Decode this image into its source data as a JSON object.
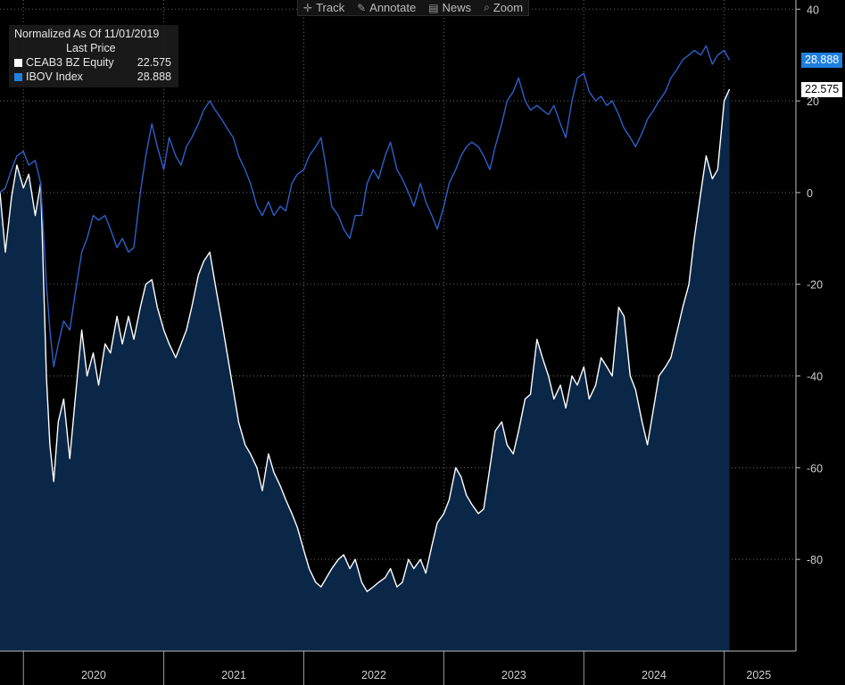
{
  "toolbar": {
    "track_label": "Track",
    "annotate_label": "Annotate",
    "news_label": "News",
    "zoom_label": "Zoom"
  },
  "legend": {
    "title": "Normalized As Of 11/01/2019",
    "subtitle": "Last Price",
    "items": [
      {
        "name": "CEAB3 BZ Equity",
        "value": "22.575",
        "color": "#ffffff"
      },
      {
        "name": "IBOV Index",
        "value": "28.888",
        "color": "#1f7fe0"
      }
    ]
  },
  "colors": {
    "background": "#000000",
    "ibov_line": "#2f5fc8",
    "ceab3_line": "#ffffff",
    "ceab3_fill": "#0b2747",
    "ibov_tag": "#1f7fe0",
    "grid": "#6b6b6b"
  },
  "chart_data": {
    "type": "line",
    "x_axis_type": "date",
    "x_range": [
      "2019-11-01",
      "2025-06-30"
    ],
    "ylim": [
      -100,
      42
    ],
    "y_ticks": [
      40,
      20,
      0,
      -20,
      -40,
      -60,
      -80
    ],
    "x_ticks": [
      "2020",
      "2021",
      "2022",
      "2023",
      "2024",
      "2025"
    ],
    "grid": true,
    "legend_position": "top-left",
    "series": [
      {
        "name": "CEAB3 BZ Equity",
        "last_value": 22.575,
        "area_fill": true,
        "points": [
          [
            "2019-11-01",
            0
          ],
          [
            "2019-11-15",
            -13
          ],
          [
            "2019-12-01",
            -1
          ],
          [
            "2019-12-15",
            6
          ],
          [
            "2020-01-01",
            1
          ],
          [
            "2020-01-15",
            4
          ],
          [
            "2020-02-01",
            -5
          ],
          [
            "2020-02-15",
            2
          ],
          [
            "2020-03-01",
            -40
          ],
          [
            "2020-03-10",
            -55
          ],
          [
            "2020-03-20",
            -63
          ],
          [
            "2020-04-01",
            -50
          ],
          [
            "2020-04-15",
            -45
          ],
          [
            "2020-05-01",
            -58
          ],
          [
            "2020-05-15",
            -45
          ],
          [
            "2020-06-01",
            -30
          ],
          [
            "2020-06-15",
            -40
          ],
          [
            "2020-07-01",
            -35
          ],
          [
            "2020-07-15",
            -42
          ],
          [
            "2020-08-01",
            -33
          ],
          [
            "2020-08-15",
            -35
          ],
          [
            "2020-09-01",
            -27
          ],
          [
            "2020-09-15",
            -33
          ],
          [
            "2020-10-01",
            -27
          ],
          [
            "2020-10-15",
            -32
          ],
          [
            "2020-11-01",
            -25
          ],
          [
            "2020-11-15",
            -20
          ],
          [
            "2020-12-01",
            -19
          ],
          [
            "2020-12-15",
            -25
          ],
          [
            "2021-01-01",
            -30
          ],
          [
            "2021-01-15",
            -33
          ],
          [
            "2021-02-01",
            -36
          ],
          [
            "2021-02-15",
            -33
          ],
          [
            "2021-03-01",
            -30
          ],
          [
            "2021-03-15",
            -25
          ],
          [
            "2021-04-01",
            -18
          ],
          [
            "2021-04-15",
            -15
          ],
          [
            "2021-05-01",
            -13
          ],
          [
            "2021-05-15",
            -20
          ],
          [
            "2021-06-01",
            -28
          ],
          [
            "2021-06-15",
            -35
          ],
          [
            "2021-07-01",
            -43
          ],
          [
            "2021-07-15",
            -50
          ],
          [
            "2021-08-01",
            -55
          ],
          [
            "2021-08-15",
            -57
          ],
          [
            "2021-09-01",
            -60
          ],
          [
            "2021-09-15",
            -65
          ],
          [
            "2021-10-01",
            -57
          ],
          [
            "2021-10-15",
            -61
          ],
          [
            "2021-11-01",
            -64
          ],
          [
            "2021-11-15",
            -67
          ],
          [
            "2021-12-01",
            -70
          ],
          [
            "2021-12-15",
            -73
          ],
          [
            "2022-01-01",
            -78
          ],
          [
            "2022-01-15",
            -82
          ],
          [
            "2022-02-01",
            -85
          ],
          [
            "2022-02-15",
            -86
          ],
          [
            "2022-03-01",
            -84
          ],
          [
            "2022-03-15",
            -82
          ],
          [
            "2022-04-01",
            -80
          ],
          [
            "2022-04-15",
            -79
          ],
          [
            "2022-05-01",
            -82
          ],
          [
            "2022-05-15",
            -80
          ],
          [
            "2022-06-01",
            -85
          ],
          [
            "2022-06-15",
            -87
          ],
          [
            "2022-07-01",
            -86
          ],
          [
            "2022-07-15",
            -85
          ],
          [
            "2022-08-01",
            -84
          ],
          [
            "2022-08-15",
            -82
          ],
          [
            "2022-09-01",
            -86
          ],
          [
            "2022-09-15",
            -85
          ],
          [
            "2022-10-01",
            -80
          ],
          [
            "2022-10-15",
            -82
          ],
          [
            "2022-11-01",
            -80
          ],
          [
            "2022-11-15",
            -83
          ],
          [
            "2022-12-01",
            -77
          ],
          [
            "2022-12-15",
            -72
          ],
          [
            "2023-01-01",
            -70
          ],
          [
            "2023-01-15",
            -67
          ],
          [
            "2023-02-01",
            -60
          ],
          [
            "2023-02-15",
            -62
          ],
          [
            "2023-03-01",
            -66
          ],
          [
            "2023-03-15",
            -68
          ],
          [
            "2023-04-01",
            -70
          ],
          [
            "2023-04-15",
            -69
          ],
          [
            "2023-05-01",
            -60
          ],
          [
            "2023-05-15",
            -52
          ],
          [
            "2023-06-01",
            -50
          ],
          [
            "2023-06-15",
            -55
          ],
          [
            "2023-07-01",
            -57
          ],
          [
            "2023-07-15",
            -52
          ],
          [
            "2023-08-01",
            -45
          ],
          [
            "2023-08-15",
            -44
          ],
          [
            "2023-09-01",
            -32
          ],
          [
            "2023-09-15",
            -36
          ],
          [
            "2023-10-01",
            -40
          ],
          [
            "2023-10-15",
            -45
          ],
          [
            "2023-11-01",
            -42
          ],
          [
            "2023-11-15",
            -47
          ],
          [
            "2023-12-01",
            -40
          ],
          [
            "2023-12-15",
            -42
          ],
          [
            "2024-01-01",
            -38
          ],
          [
            "2024-01-15",
            -45
          ],
          [
            "2024-02-01",
            -42
          ],
          [
            "2024-02-15",
            -36
          ],
          [
            "2024-03-01",
            -38
          ],
          [
            "2024-03-15",
            -40
          ],
          [
            "2024-04-01",
            -25
          ],
          [
            "2024-04-15",
            -27
          ],
          [
            "2024-05-01",
            -40
          ],
          [
            "2024-05-15",
            -43
          ],
          [
            "2024-06-01",
            -50
          ],
          [
            "2024-06-15",
            -55
          ],
          [
            "2024-07-01",
            -47
          ],
          [
            "2024-07-15",
            -40
          ],
          [
            "2024-08-01",
            -38
          ],
          [
            "2024-08-15",
            -36
          ],
          [
            "2024-09-01",
            -30
          ],
          [
            "2024-09-15",
            -25
          ],
          [
            "2024-10-01",
            -20
          ],
          [
            "2024-10-15",
            -10
          ],
          [
            "2024-11-01",
            0
          ],
          [
            "2024-11-15",
            8
          ],
          [
            "2024-12-01",
            3
          ],
          [
            "2024-12-15",
            5
          ],
          [
            "2025-01-01",
            20
          ],
          [
            "2025-01-15",
            22.575
          ]
        ]
      },
      {
        "name": "IBOV Index",
        "last_value": 28.888,
        "area_fill": false,
        "points": [
          [
            "2019-11-01",
            0
          ],
          [
            "2019-11-15",
            1
          ],
          [
            "2019-12-01",
            5
          ],
          [
            "2019-12-15",
            8
          ],
          [
            "2020-01-01",
            9
          ],
          [
            "2020-01-15",
            6
          ],
          [
            "2020-02-01",
            7
          ],
          [
            "2020-02-15",
            2
          ],
          [
            "2020-03-01",
            -20
          ],
          [
            "2020-03-10",
            -30
          ],
          [
            "2020-03-20",
            -38
          ],
          [
            "2020-04-01",
            -33
          ],
          [
            "2020-04-15",
            -28
          ],
          [
            "2020-05-01",
            -30
          ],
          [
            "2020-05-15",
            -22
          ],
          [
            "2020-06-01",
            -13
          ],
          [
            "2020-06-15",
            -10
          ],
          [
            "2020-07-01",
            -5
          ],
          [
            "2020-07-15",
            -6
          ],
          [
            "2020-08-01",
            -5
          ],
          [
            "2020-08-15",
            -8
          ],
          [
            "2020-09-01",
            -12
          ],
          [
            "2020-09-15",
            -10
          ],
          [
            "2020-10-01",
            -13
          ],
          [
            "2020-10-15",
            -12
          ],
          [
            "2020-11-01",
            0
          ],
          [
            "2020-11-15",
            8
          ],
          [
            "2020-12-01",
            15
          ],
          [
            "2020-12-15",
            10
          ],
          [
            "2021-01-01",
            5
          ],
          [
            "2021-01-15",
            12
          ],
          [
            "2021-02-01",
            8
          ],
          [
            "2021-02-15",
            6
          ],
          [
            "2021-03-01",
            10
          ],
          [
            "2021-03-15",
            12
          ],
          [
            "2021-04-01",
            15
          ],
          [
            "2021-04-15",
            18
          ],
          [
            "2021-05-01",
            20
          ],
          [
            "2021-05-15",
            18
          ],
          [
            "2021-06-01",
            16
          ],
          [
            "2021-06-15",
            14
          ],
          [
            "2021-07-01",
            12
          ],
          [
            "2021-07-15",
            8
          ],
          [
            "2021-08-01",
            5
          ],
          [
            "2021-08-15",
            2
          ],
          [
            "2021-09-01",
            -3
          ],
          [
            "2021-09-15",
            -5
          ],
          [
            "2021-10-01",
            -2
          ],
          [
            "2021-10-15",
            -5
          ],
          [
            "2021-11-01",
            -3
          ],
          [
            "2021-11-15",
            -4
          ],
          [
            "2021-12-01",
            2
          ],
          [
            "2021-12-15",
            4
          ],
          [
            "2022-01-01",
            5
          ],
          [
            "2022-01-15",
            8
          ],
          [
            "2022-02-01",
            10
          ],
          [
            "2022-02-15",
            12
          ],
          [
            "2022-03-01",
            5
          ],
          [
            "2022-03-15",
            -3
          ],
          [
            "2022-04-01",
            -5
          ],
          [
            "2022-04-15",
            -8
          ],
          [
            "2022-05-01",
            -10
          ],
          [
            "2022-05-15",
            -5
          ],
          [
            "2022-06-01",
            -5
          ],
          [
            "2022-06-15",
            2
          ],
          [
            "2022-07-01",
            5
          ],
          [
            "2022-07-15",
            3
          ],
          [
            "2022-08-01",
            8
          ],
          [
            "2022-08-15",
            11
          ],
          [
            "2022-09-01",
            5
          ],
          [
            "2022-09-15",
            3
          ],
          [
            "2022-10-01",
            0
          ],
          [
            "2022-10-15",
            -3
          ],
          [
            "2022-11-01",
            2
          ],
          [
            "2022-11-15",
            -2
          ],
          [
            "2022-12-01",
            -5
          ],
          [
            "2022-12-15",
            -8
          ],
          [
            "2023-01-01",
            -3
          ],
          [
            "2023-01-15",
            2
          ],
          [
            "2023-02-01",
            5
          ],
          [
            "2023-02-15",
            8
          ],
          [
            "2023-03-01",
            10
          ],
          [
            "2023-03-15",
            11
          ],
          [
            "2023-04-01",
            10
          ],
          [
            "2023-04-15",
            8
          ],
          [
            "2023-05-01",
            5
          ],
          [
            "2023-05-15",
            10
          ],
          [
            "2023-06-01",
            15
          ],
          [
            "2023-06-15",
            20
          ],
          [
            "2023-07-01",
            22
          ],
          [
            "2023-07-15",
            25
          ],
          [
            "2023-08-01",
            20
          ],
          [
            "2023-08-15",
            18
          ],
          [
            "2023-09-01",
            19
          ],
          [
            "2023-09-15",
            18
          ],
          [
            "2023-10-01",
            17
          ],
          [
            "2023-10-15",
            19
          ],
          [
            "2023-11-01",
            15
          ],
          [
            "2023-11-15",
            12
          ],
          [
            "2023-12-01",
            20
          ],
          [
            "2023-12-15",
            25
          ],
          [
            "2024-01-01",
            26
          ],
          [
            "2024-01-15",
            22
          ],
          [
            "2024-02-01",
            20
          ],
          [
            "2024-02-15",
            21
          ],
          [
            "2024-03-01",
            19
          ],
          [
            "2024-03-15",
            20
          ],
          [
            "2024-04-01",
            17
          ],
          [
            "2024-04-15",
            14
          ],
          [
            "2024-05-01",
            12
          ],
          [
            "2024-05-15",
            10
          ],
          [
            "2024-06-01",
            13
          ],
          [
            "2024-06-15",
            16
          ],
          [
            "2024-07-01",
            18
          ],
          [
            "2024-07-15",
            20
          ],
          [
            "2024-08-01",
            22
          ],
          [
            "2024-08-15",
            25
          ],
          [
            "2024-09-01",
            27
          ],
          [
            "2024-09-15",
            29
          ],
          [
            "2024-10-01",
            30
          ],
          [
            "2024-10-15",
            31
          ],
          [
            "2024-11-01",
            30
          ],
          [
            "2024-11-15",
            32
          ],
          [
            "2024-12-01",
            28
          ],
          [
            "2024-12-15",
            30
          ],
          [
            "2025-01-01",
            31
          ],
          [
            "2025-01-15",
            28.888
          ]
        ]
      }
    ]
  }
}
